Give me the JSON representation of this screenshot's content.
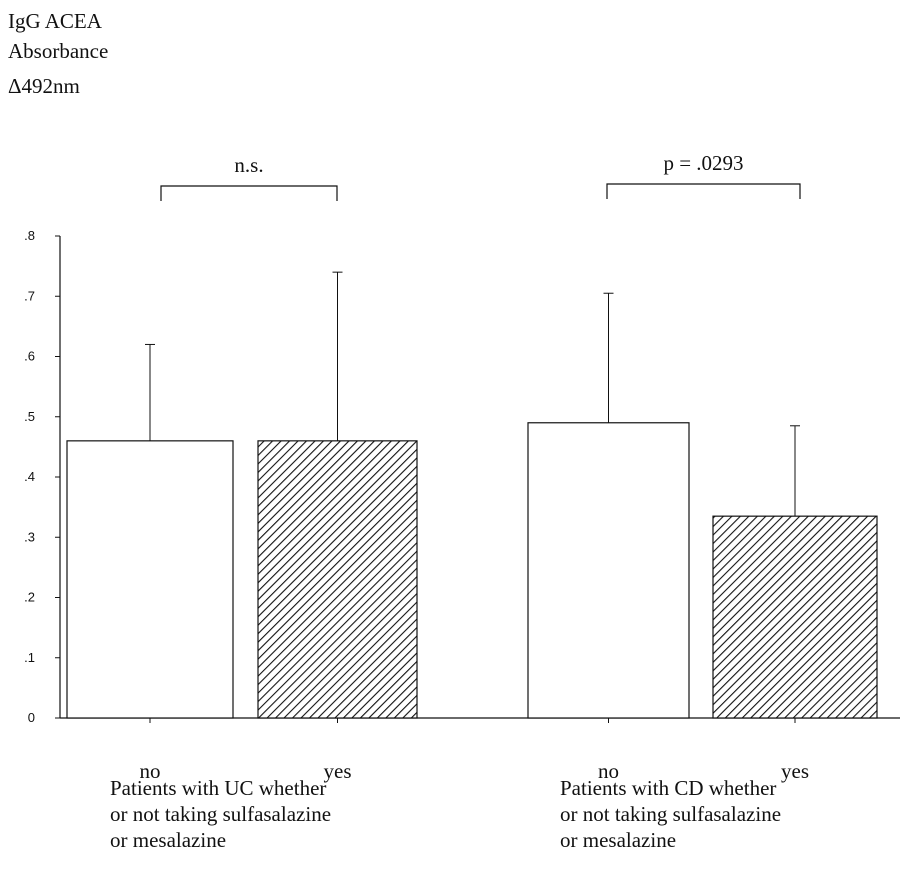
{
  "y_axis_title_lines": [
    "IgG ACEA",
    "Absorbance",
    "Δ492nm"
  ],
  "chart_data": {
    "type": "bar",
    "ylim": [
      0,
      0.8
    ],
    "y_ticks": [
      {
        "value": 0,
        "label": "0"
      },
      {
        "value": 0.1,
        "label": ".1"
      },
      {
        "value": 0.2,
        "label": ".2"
      },
      {
        "value": 0.3,
        "label": ".3"
      },
      {
        "value": 0.4,
        "label": ".4"
      },
      {
        "value": 0.5,
        "label": ".5"
      },
      {
        "value": 0.6,
        "label": ".6"
      },
      {
        "value": 0.7,
        "label": ".7"
      },
      {
        "value": 0.8,
        "label": ".8"
      }
    ],
    "groups": [
      {
        "caption": [
          "Patients with UC whether",
          "or not taking sulfasalazine",
          "or mesalazine"
        ],
        "significance": "n.s.",
        "bars": [
          {
            "category": "no",
            "value": 0.46,
            "error_upper": 0.62,
            "pattern": "open"
          },
          {
            "category": "yes",
            "value": 0.46,
            "error_upper": 0.74,
            "pattern": "hatched"
          }
        ]
      },
      {
        "caption": [
          "Patients with CD whether",
          "or not taking  sulfasalazine",
          "or mesalazine"
        ],
        "significance": "p = .0293",
        "bars": [
          {
            "category": "no",
            "value": 0.49,
            "error_upper": 0.705,
            "pattern": "open"
          },
          {
            "category": "yes",
            "value": 0.335,
            "error_upper": 0.485,
            "pattern": "hatched"
          }
        ]
      }
    ],
    "grid": false,
    "legend": "none"
  }
}
